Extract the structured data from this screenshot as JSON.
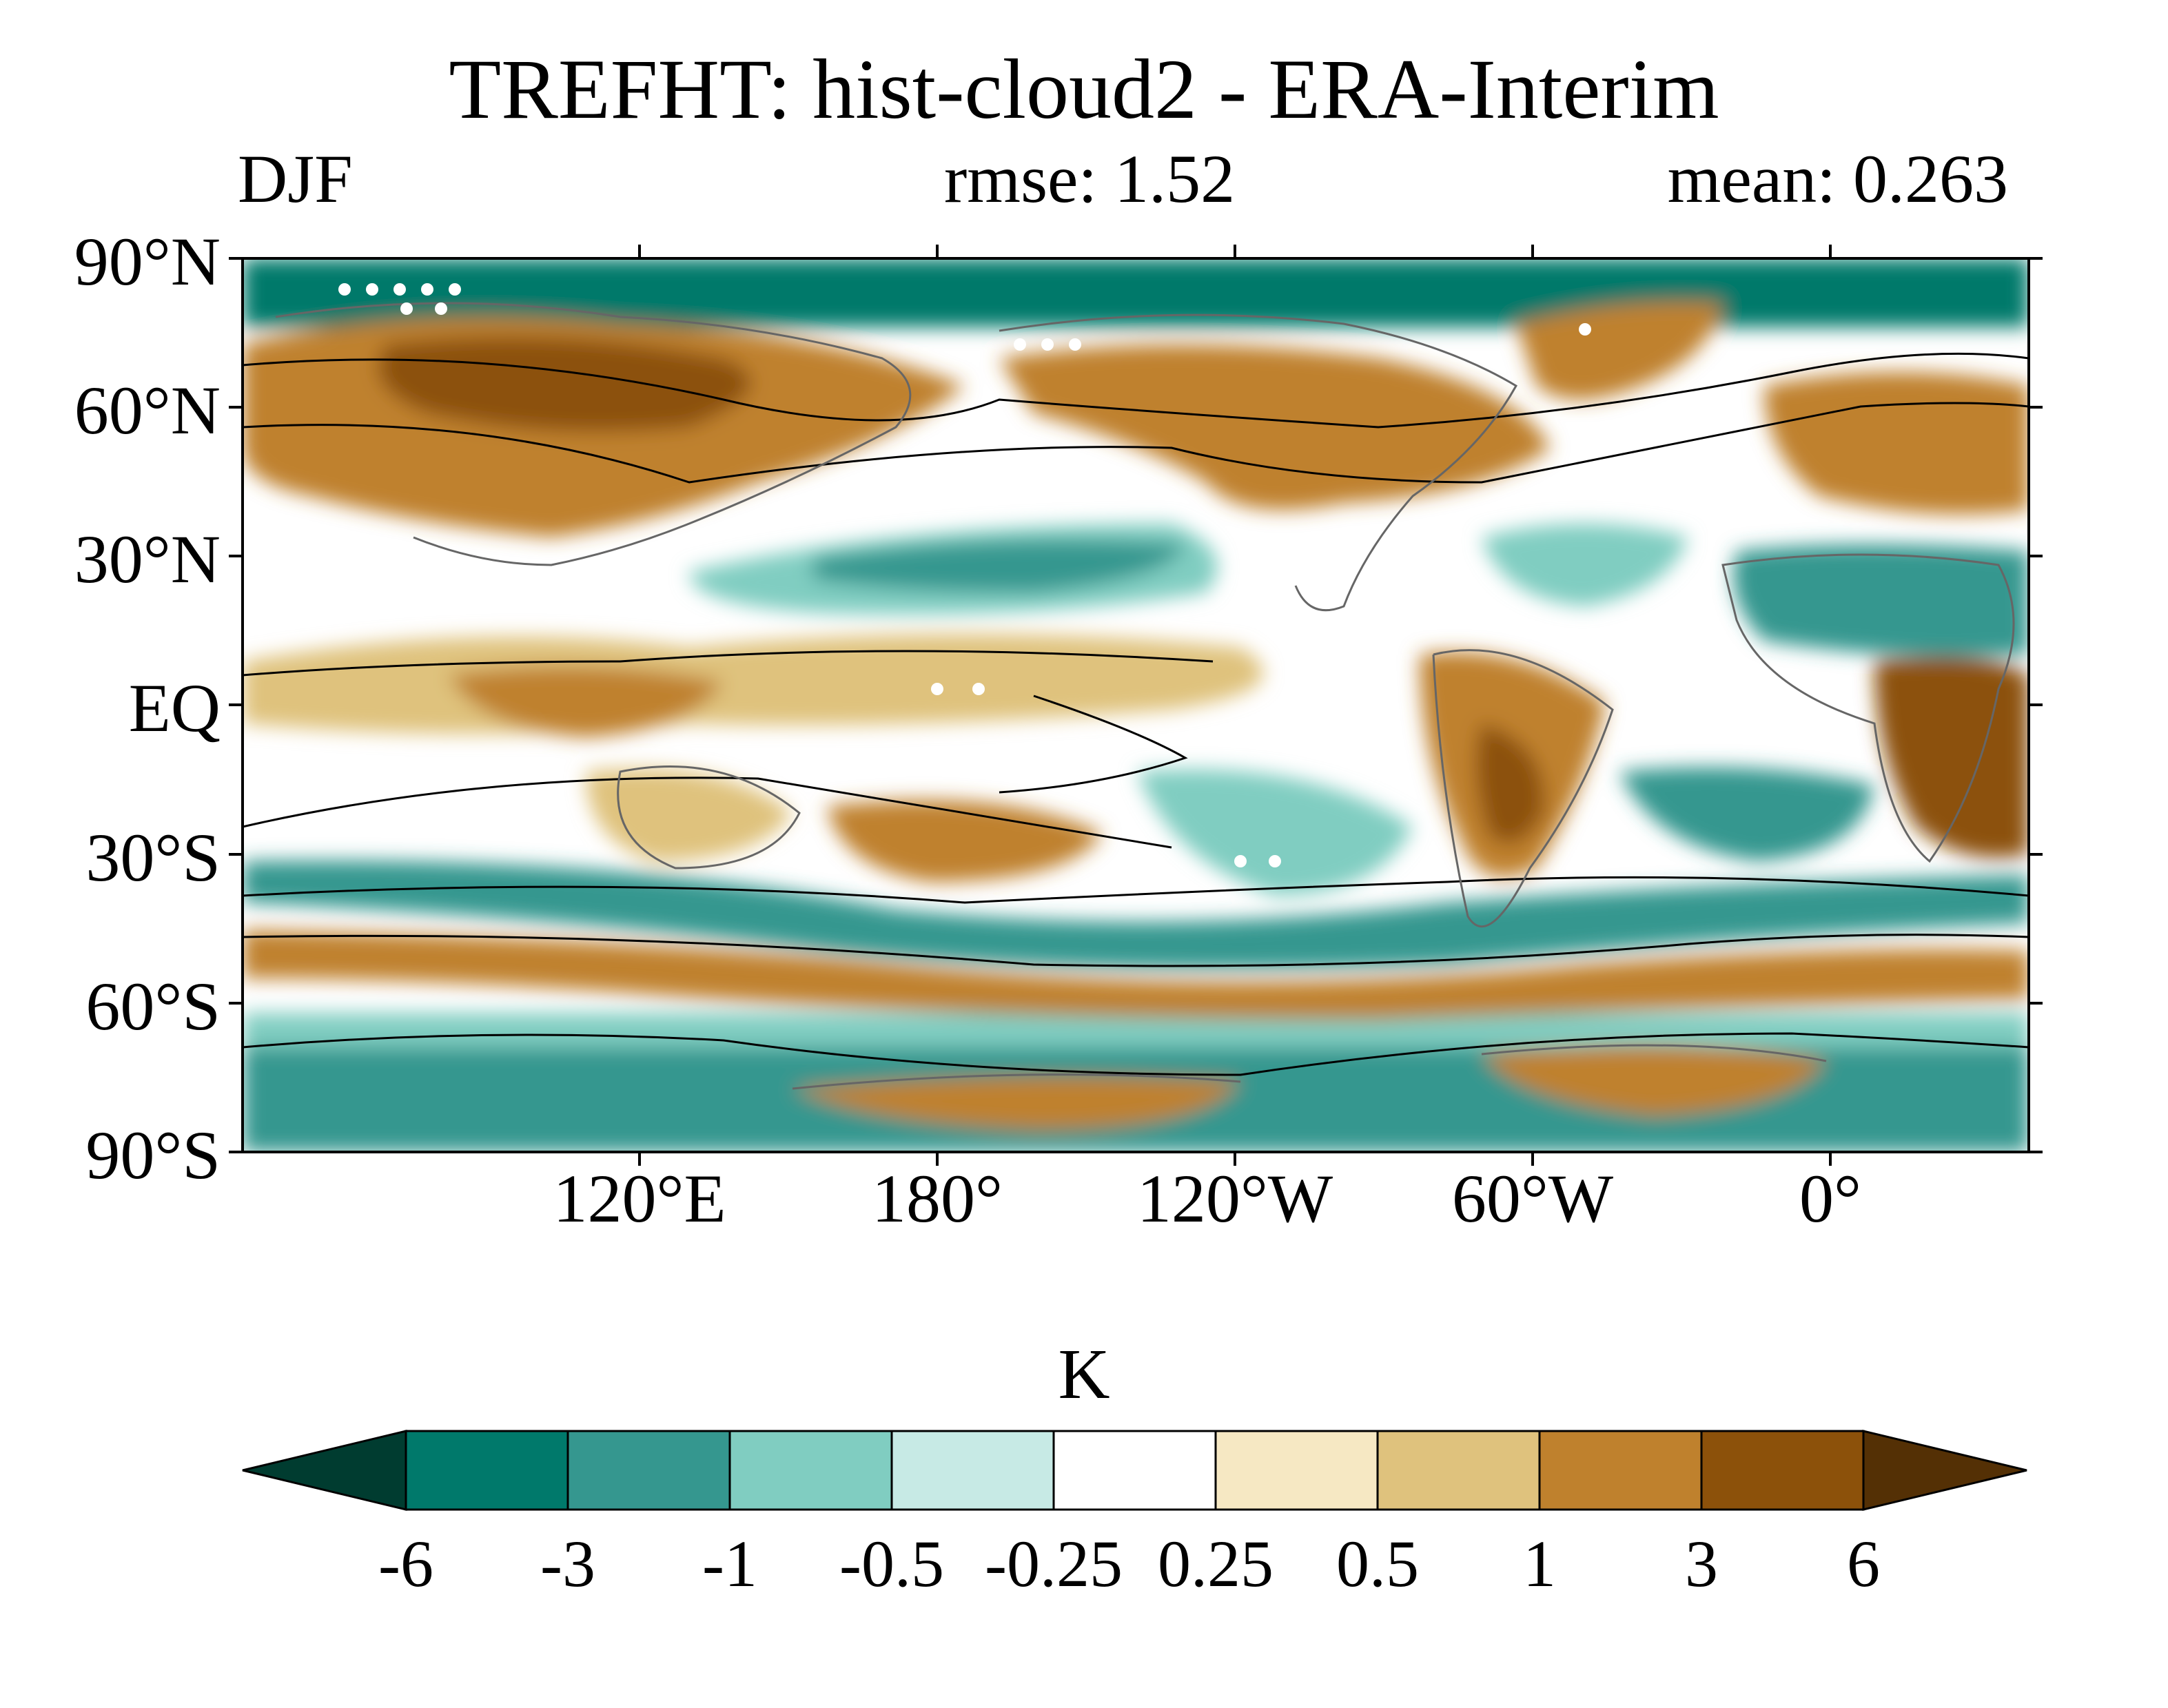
{
  "figure": {
    "title": "TREFHT: hist-cloud2 - ERA-Interim",
    "season": "DJF",
    "rmse": "rmse: 1.52",
    "mean": "mean: 0.263"
  },
  "map": {
    "lat_labels": [
      "90°N",
      "60°N",
      "30°N",
      "EQ",
      "30°S",
      "60°S",
      "90°S"
    ],
    "lon_labels": [
      "120°E",
      "180°",
      "120°W",
      "60°W",
      "0°"
    ],
    "lon_range": [
      40,
      400
    ],
    "lat_range": [
      -90,
      90
    ],
    "lon_tick_values": [
      120,
      180,
      240,
      300,
      360
    ]
  },
  "colorbar": {
    "units": "K",
    "levels": [
      "-6",
      "-3",
      "-1",
      "-0.5",
      "-0.25",
      "0.25",
      "0.5",
      "1",
      "3",
      "6"
    ],
    "colors": [
      "#00796b",
      "#35978f",
      "#80cdc1",
      "#c7eae5",
      "#ffffff",
      "#f6e8c3",
      "#dfc27d",
      "#bf812d",
      "#8c510a"
    ],
    "under_color": "#003c30",
    "over_color": "#543005"
  },
  "palette": {
    "land_outline": "#666666",
    "contour_line": "#000000",
    "stipple": "#ffffff"
  }
}
